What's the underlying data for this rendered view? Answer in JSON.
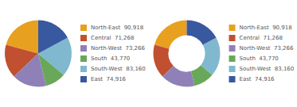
{
  "chart_data": [
    {
      "type": "pie",
      "categories": [
        "North-East  90,918",
        "Central  71,268",
        "North-West  73,266",
        "South  43,770",
        "South-West  83,160",
        "East  74,916"
      ],
      "values": [
        90918,
        71268,
        73266,
        43770,
        83160,
        74916
      ],
      "colors": [
        "#e8a020",
        "#c05030",
        "#9080b8",
        "#68a858",
        "#80b8d0",
        "#3858a0"
      ],
      "legend": "right"
    },
    {
      "type": "donut",
      "categories": [
        "North-East  90,918",
        "Central  71,268",
        "North-West  73,266",
        "South  43,770",
        "South-West  83,160",
        "East  74,916"
      ],
      "values": [
        90918,
        71268,
        73266,
        43770,
        83160,
        74916
      ],
      "colors": [
        "#e8a020",
        "#c05030",
        "#9080b8",
        "#68a858",
        "#80b8d0",
        "#3858a0"
      ],
      "legend": "right"
    }
  ]
}
